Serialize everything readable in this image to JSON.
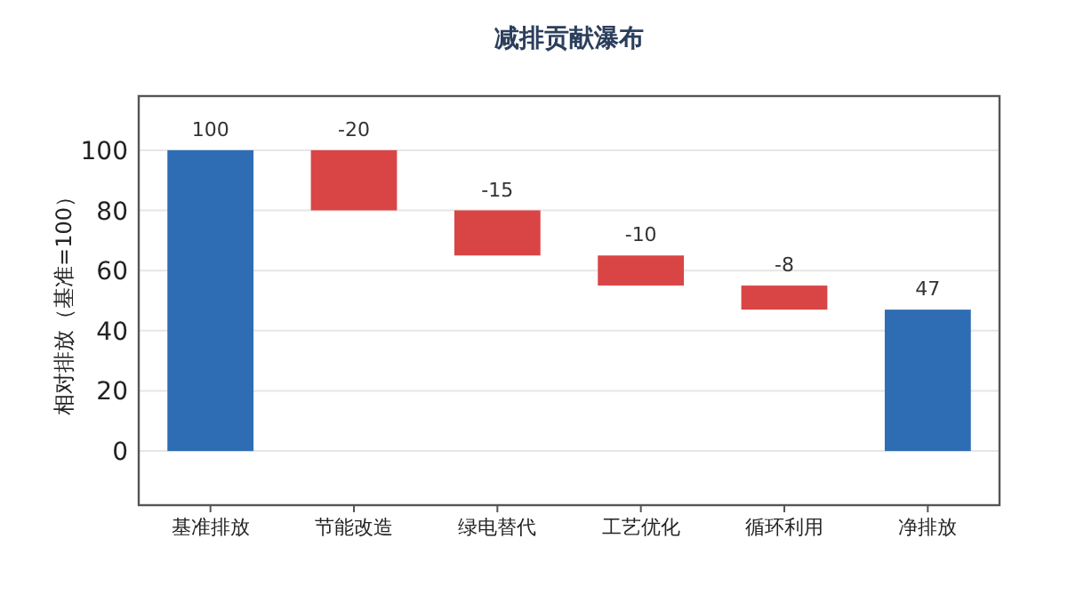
{
  "chart_data": {
    "type": "bar",
    "title": "减排贡献瀑布",
    "ylabel": "相对排放（基准=100）",
    "categories": [
      "基准排放",
      "节能改造",
      "绿电替代",
      "工艺优化",
      "循环利用",
      "净排放"
    ],
    "values": [
      100,
      -20,
      -15,
      -10,
      -8,
      47
    ],
    "base": [
      0,
      100,
      80,
      65,
      55,
      0
    ],
    "colors": [
      "#2e6db4",
      "#d94545",
      "#d94545",
      "#d94545",
      "#d94545",
      "#2e6db4"
    ],
    "ylim": [
      -18,
      118
    ],
    "yticks": [
      0,
      20,
      40,
      60,
      80,
      100
    ],
    "grid": "y",
    "data_labels": true
  }
}
